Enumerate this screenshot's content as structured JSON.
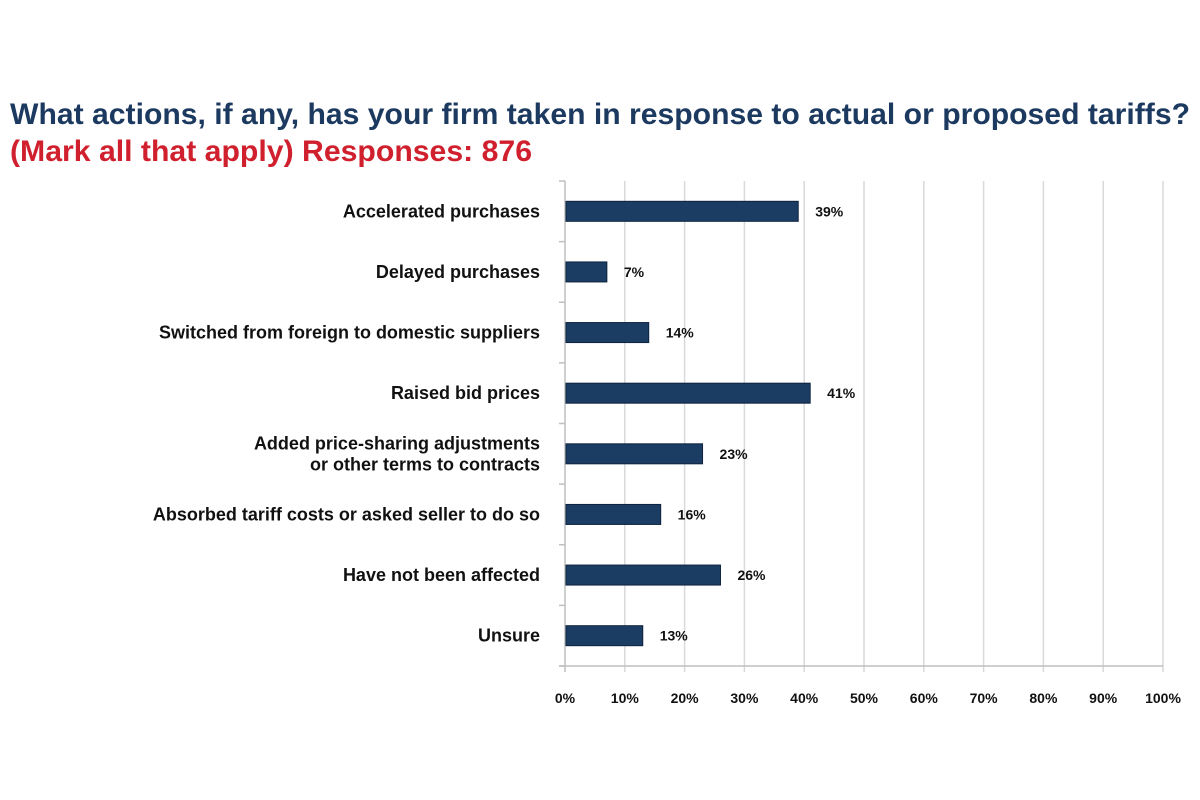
{
  "chart_data": {
    "type": "bar",
    "orientation": "horizontal",
    "title": "What actions, if any, has your firm taken in response to actual or proposed tariffs?",
    "subtitle": "(Mark all that apply) Responses: 876",
    "categories": [
      [
        "Accelerated purchases"
      ],
      [
        "Delayed purchases"
      ],
      [
        "Switched from foreign to domestic suppliers"
      ],
      [
        "Raised bid prices"
      ],
      [
        "Added price-sharing adjustments",
        "or other terms to contracts"
      ],
      [
        "Absorbed tariff costs or asked seller to do so"
      ],
      [
        "Have not been affected"
      ],
      [
        "Unsure"
      ]
    ],
    "values": [
      39,
      7,
      14,
      41,
      23,
      16,
      26,
      13
    ],
    "value_labels": [
      "39%",
      "7%",
      "14%",
      "41%",
      "23%",
      "16%",
      "26%",
      "13%"
    ],
    "xlim": [
      0,
      100
    ],
    "xticks": [
      0,
      10,
      20,
      30,
      40,
      50,
      60,
      70,
      80,
      90,
      100
    ],
    "xtick_labels": [
      "0%",
      "10%",
      "20%",
      "30%",
      "40%",
      "50%",
      "60%",
      "70%",
      "80%",
      "90%",
      "100%"
    ],
    "grid": true,
    "colors": {
      "bar": "#1c3d63",
      "title": "#1c3a60",
      "subtitle": "#d0202e",
      "grid": "#d9d9d9"
    }
  }
}
